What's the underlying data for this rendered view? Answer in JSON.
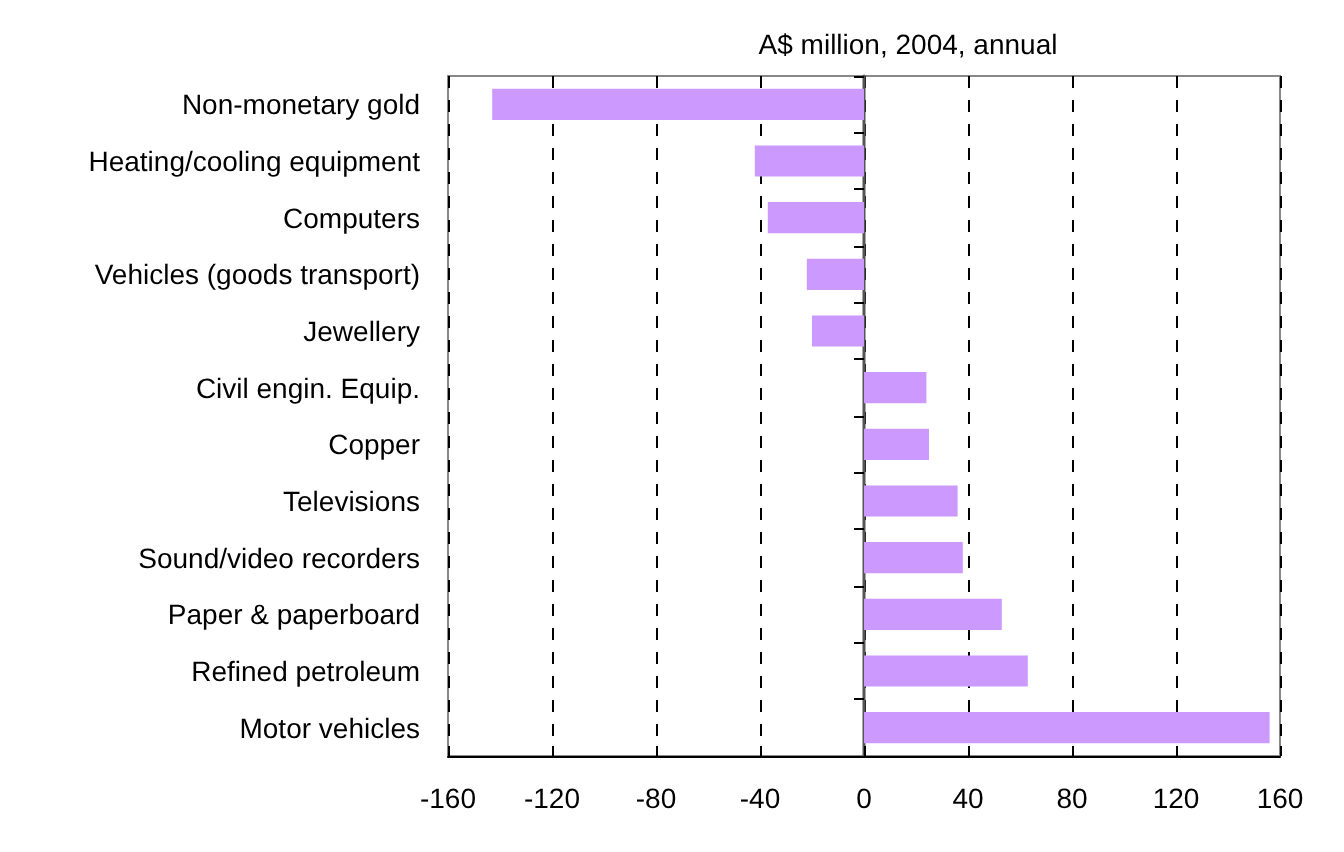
{
  "chart_data": {
    "type": "bar",
    "orientation": "horizontal",
    "title": "A$ million, 2004, annual",
    "categories": [
      "Non-monetary gold",
      "Heating/cooling equipment",
      "Computers",
      "Vehicles (goods transport)",
      "Jewellery",
      "Civil engin. Equip.",
      "Copper",
      "Televisions",
      "Sound/video recorders",
      "Paper & paperboard",
      "Refined petroleum",
      "Motor vehicles"
    ],
    "values": [
      -143,
      -42,
      -37,
      -22,
      -20,
      24,
      25,
      36,
      38,
      53,
      63,
      156
    ],
    "color": "#cc99ff",
    "xlim": [
      -160,
      160
    ],
    "xticks": [
      -160,
      -120,
      -80,
      -40,
      0,
      40,
      80,
      120,
      160
    ],
    "grid": "x"
  }
}
